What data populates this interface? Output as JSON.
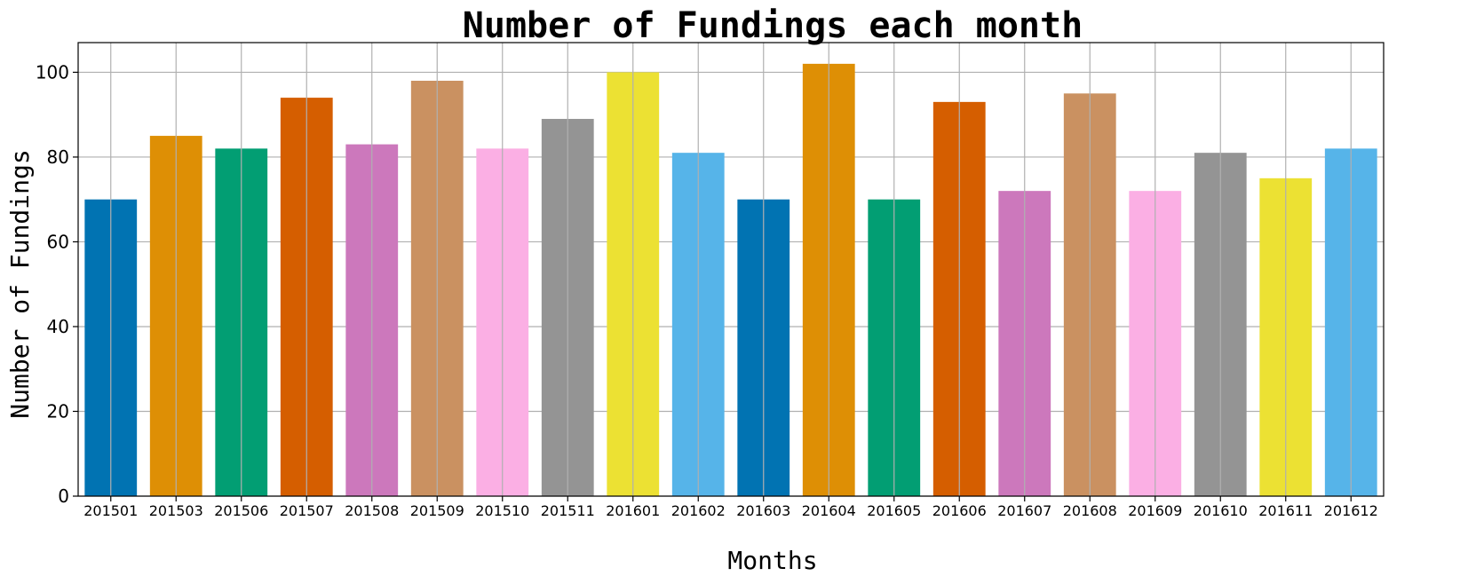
{
  "chart_data": {
    "type": "bar",
    "title": "Number of Fundings each month",
    "xlabel": "Months",
    "ylabel": "Number of Fundings",
    "categories": [
      "201501",
      "201503",
      "201506",
      "201507",
      "201508",
      "201509",
      "201510",
      "201511",
      "201601",
      "201602",
      "201603",
      "201604",
      "201605",
      "201606",
      "201607",
      "201608",
      "201609",
      "201610",
      "201611",
      "201612"
    ],
    "values": [
      70,
      85,
      82,
      94,
      83,
      98,
      82,
      89,
      100,
      81,
      70,
      102,
      70,
      93,
      72,
      95,
      72,
      81,
      75,
      82
    ],
    "ylim": [
      0,
      107
    ],
    "yticks": [
      0,
      20,
      40,
      60,
      80,
      100
    ],
    "grid": true,
    "colors": [
      "#0173b2",
      "#de8f05",
      "#029e73",
      "#d55e00",
      "#cc78bc",
      "#ca9161",
      "#fbafe4",
      "#949494",
      "#ece133",
      "#56b4e9"
    ]
  }
}
